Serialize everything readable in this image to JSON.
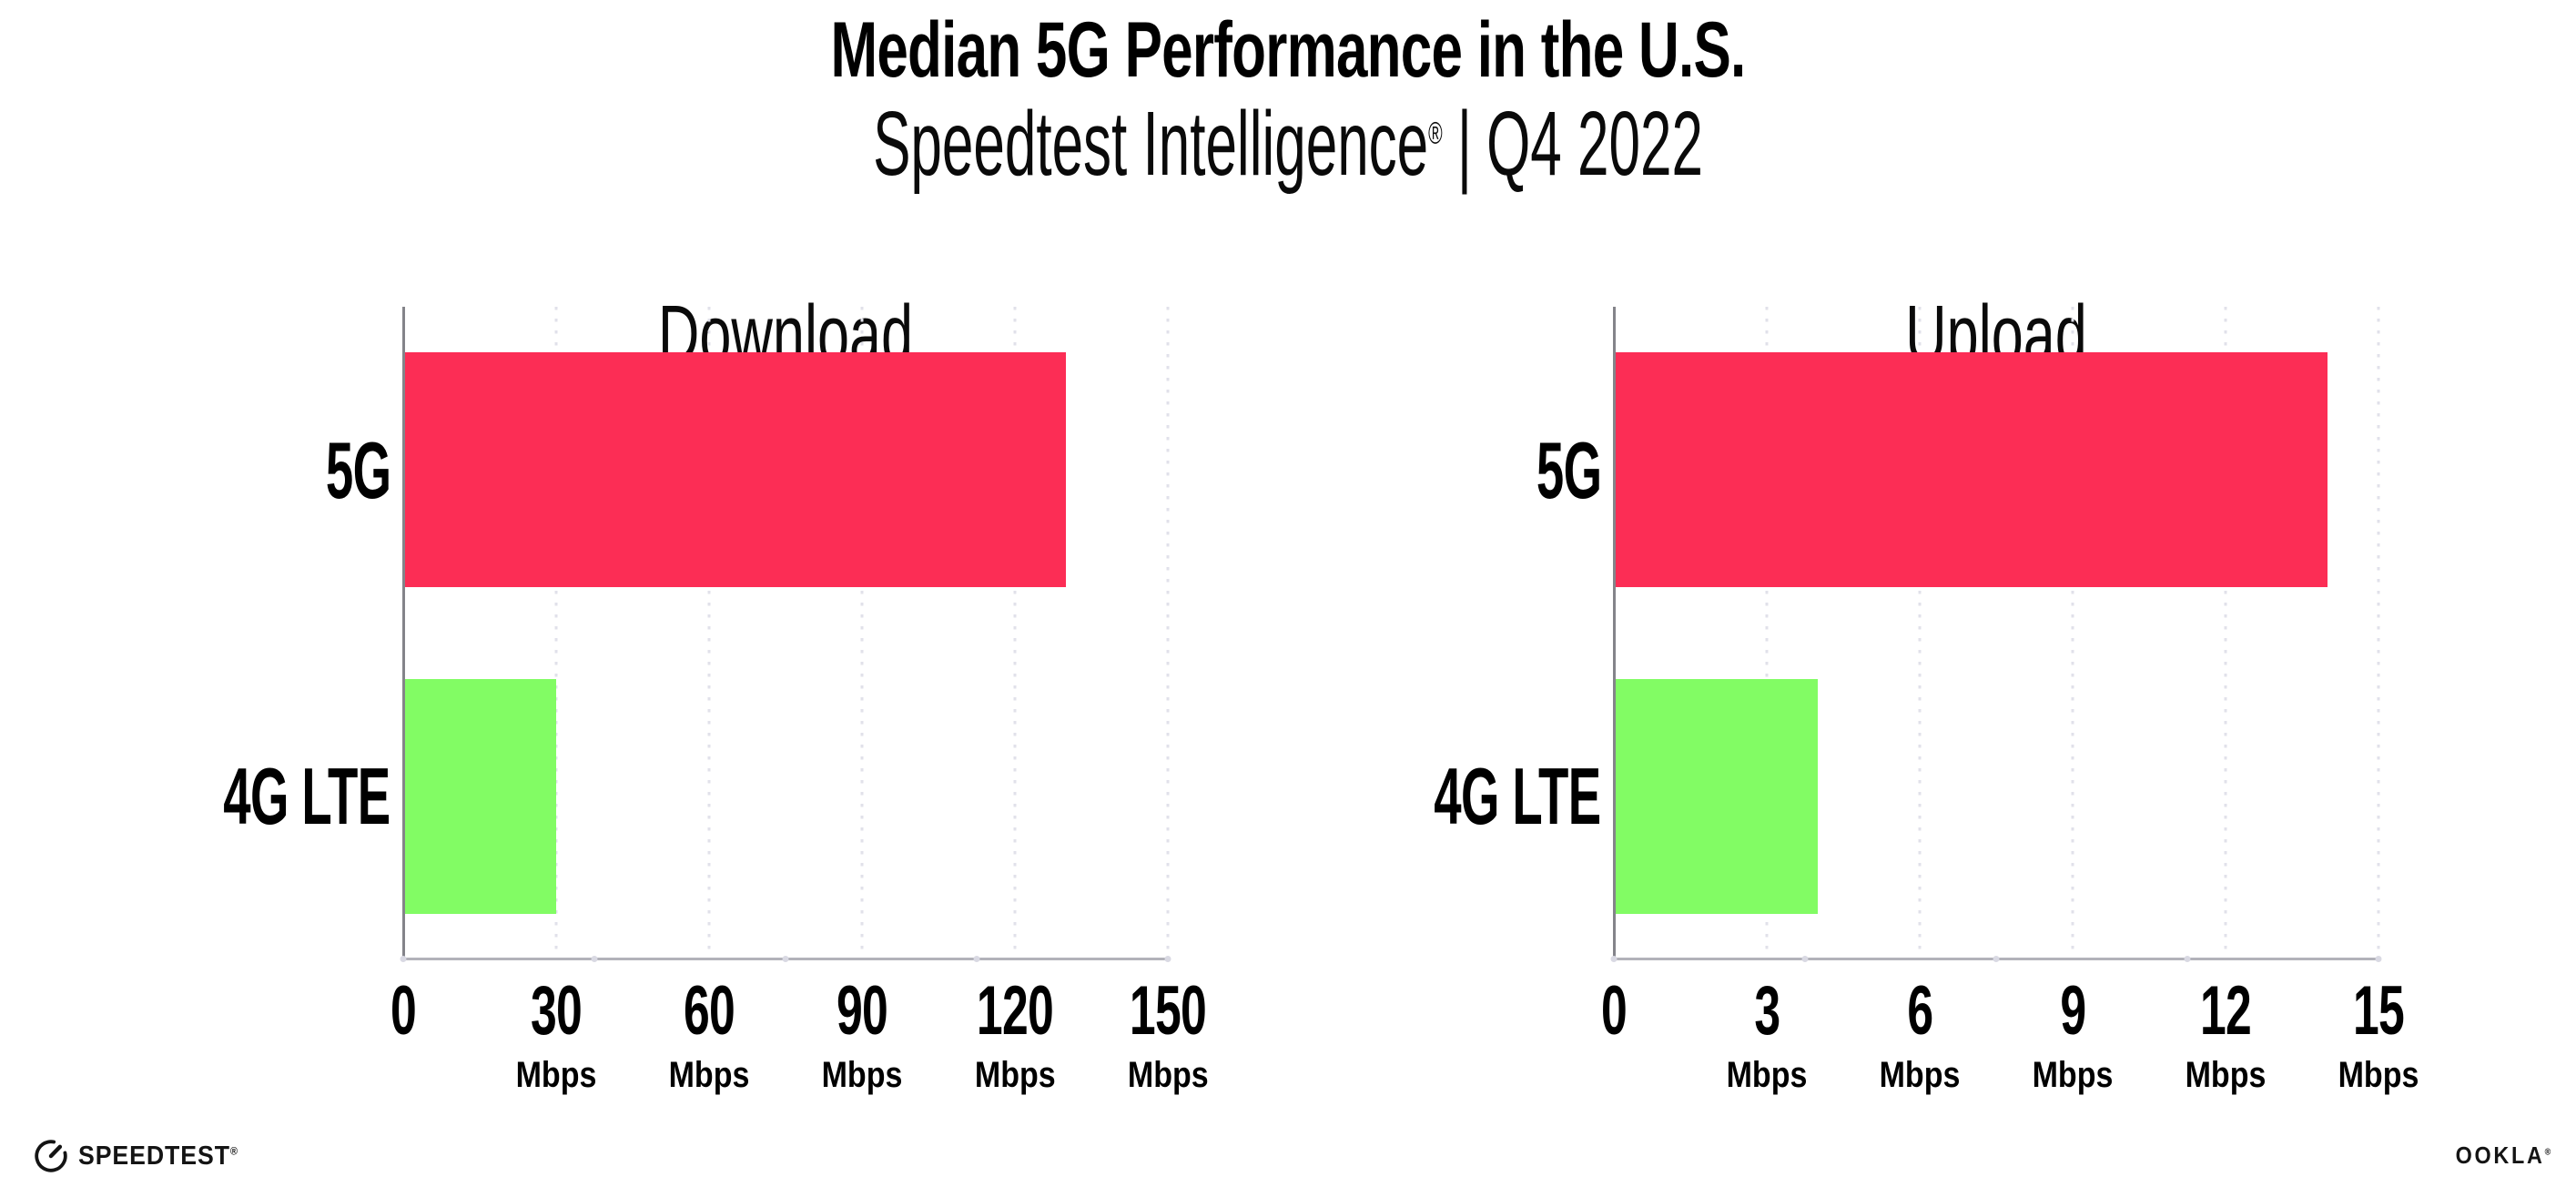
{
  "header": {
    "title": "Median 5G Performance in the U.S.",
    "subtitle_product": "Speedtest Intelligence",
    "subtitle_registered": "®",
    "subtitle_separator": "|",
    "subtitle_period": "Q4 2022"
  },
  "chart_data": [
    {
      "type": "bar",
      "orientation": "horizontal",
      "title": "Download",
      "categories": [
        "5G",
        "4G LTE"
      ],
      "values": [
        130,
        30
      ],
      "unit": "Mbps",
      "xlim": [
        0,
        150
      ],
      "xticks": [
        0,
        30,
        60,
        90,
        120,
        150
      ],
      "tick_unit": "Mbps",
      "bar_colors": [
        "#fc2d55",
        "#82fc64"
      ],
      "grid": "dotted vertical gridlines at each tick",
      "legend": "none"
    },
    {
      "type": "bar",
      "orientation": "horizontal",
      "title": "Upload",
      "categories": [
        "5G",
        "4G LTE"
      ],
      "values": [
        14,
        4
      ],
      "unit": "Mbps",
      "xlim": [
        0,
        15
      ],
      "xticks": [
        0,
        3,
        6,
        9,
        12,
        15
      ],
      "tick_unit": "Mbps",
      "bar_colors": [
        "#fc2d55",
        "#82fc64"
      ],
      "grid": "dotted vertical gridlines at each tick",
      "legend": "none"
    }
  ],
  "footer": {
    "speedtest_logo": "SPEEDTEST",
    "speedtest_registered": "®",
    "ookla_logo": "OOKLA",
    "ookla_registered": "®"
  }
}
